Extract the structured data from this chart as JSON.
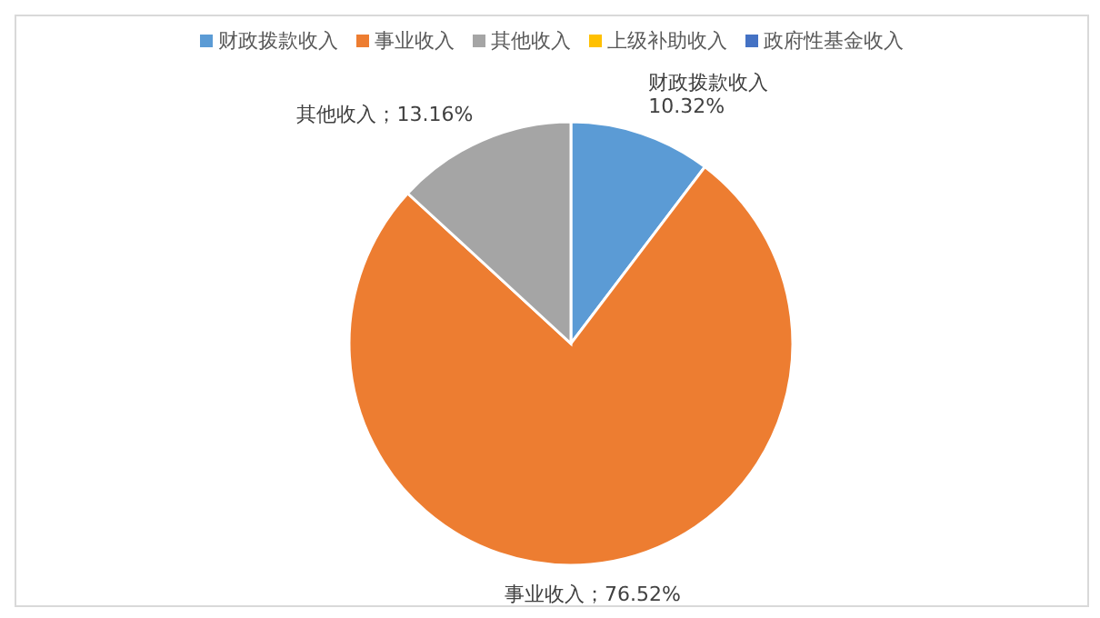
{
  "chart_data": {
    "type": "pie",
    "categories": [
      "财政拨款收入",
      "事业收入",
      "其他收入",
      "上级补助收入",
      "政府性基金收入"
    ],
    "values": [
      10.32,
      76.52,
      13.16,
      0,
      0
    ],
    "colors": [
      "#5b9bd5",
      "#ed7d31",
      "#a5a5a5",
      "#ffc000",
      "#4472c4"
    ],
    "value_labels": [
      "财政拨款收入\n10.32%",
      "事业收入；76.52%",
      "其他收入；13.16%",
      null,
      null
    ],
    "legend": "top"
  }
}
